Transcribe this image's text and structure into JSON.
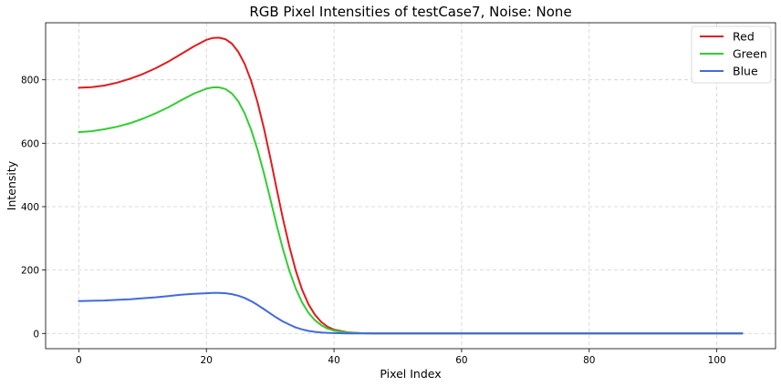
{
  "chart_data": {
    "type": "line",
    "title": "RGB Pixel Intensities of testCase7, Noise: None",
    "xlabel": "Pixel Index",
    "ylabel": "Intensity",
    "xlim": [
      -5.2,
      109.2
    ],
    "ylim": [
      -48,
      980
    ],
    "xticks": [
      0,
      20,
      40,
      60,
      80,
      100
    ],
    "yticks": [
      0,
      200,
      400,
      600,
      800
    ],
    "grid": true,
    "legend_position": "top-right",
    "x": [
      0,
      2,
      4,
      6,
      8,
      10,
      12,
      14,
      16,
      18,
      20,
      21,
      22,
      23,
      24,
      25,
      26,
      27,
      28,
      29,
      30,
      31,
      32,
      33,
      34,
      35,
      36,
      37,
      38,
      39,
      40,
      42,
      44,
      46,
      50,
      60,
      70,
      80,
      90,
      100,
      104
    ],
    "series": [
      {
        "name": "Red",
        "color": "#e31a1c",
        "values": [
          775,
          777,
          782,
          791,
          803,
          818,
          836,
          857,
          881,
          905,
          926,
          932,
          933,
          928,
          914,
          888,
          850,
          797,
          730,
          648,
          555,
          458,
          362,
          275,
          199,
          138,
          92,
          59,
          36,
          21,
          12,
          4,
          1,
          0,
          0,
          0,
          0,
          0,
          0,
          0,
          0
        ]
      },
      {
        "name": "Green",
        "color": "#32cd32",
        "values": [
          635,
          638,
          644,
          652,
          663,
          677,
          694,
          713,
          735,
          756,
          772,
          776,
          776,
          771,
          757,
          732,
          694,
          643,
          580,
          506,
          425,
          343,
          266,
          198,
          142,
          98,
          65,
          42,
          26,
          15,
          9,
          3,
          1,
          0,
          0,
          0,
          0,
          0,
          0,
          0,
          0
        ]
      },
      {
        "name": "Blue",
        "color": "#4169e1",
        "values": [
          102,
          103,
          104,
          106,
          108,
          111,
          114,
          118,
          122,
          125,
          127,
          128,
          128,
          127,
          124,
          119,
          112,
          102,
          90,
          77,
          63,
          50,
          38,
          28,
          19,
          13,
          8,
          5,
          3,
          2,
          1,
          0,
          0,
          0,
          0,
          0,
          0,
          0,
          0,
          0,
          0
        ]
      }
    ]
  }
}
